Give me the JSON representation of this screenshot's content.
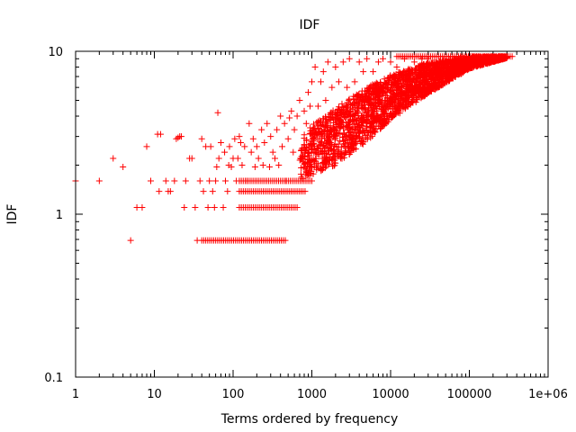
{
  "chart_data": {
    "type": "scatter",
    "title": "IDF",
    "xlabel": "Terms ordered by frequency",
    "ylabel": "IDF",
    "xscale": "log",
    "yscale": "log",
    "xlim": [
      1,
      1000000
    ],
    "ylim": [
      0.1,
      10
    ],
    "xticks": [
      {
        "value": 1,
        "label": "1"
      },
      {
        "value": 10,
        "label": "10"
      },
      {
        "value": 100,
        "label": "100"
      },
      {
        "value": 1000,
        "label": "1000"
      },
      {
        "value": 10000,
        "label": "10000"
      },
      {
        "value": 100000,
        "label": "100000"
      },
      {
        "value": 1000000,
        "label": "1e+06"
      }
    ],
    "yticks": [
      {
        "value": 0.1,
        "label": "0.1"
      },
      {
        "value": 1,
        "label": "1"
      },
      {
        "value": 10,
        "label": "10"
      }
    ],
    "marker": "+",
    "color": "#ff0000",
    "grid": false,
    "legend": "none",
    "series": [
      {
        "points": [
          [
            1,
            1.6
          ],
          [
            2,
            1.6
          ],
          [
            3,
            2.2
          ],
          [
            4,
            1.95
          ],
          [
            5,
            0.69
          ],
          [
            6,
            1.1
          ],
          [
            7,
            1.1
          ],
          [
            8,
            2.6
          ],
          [
            9,
            1.6
          ],
          [
            11,
            3.1
          ],
          [
            11.5,
            1.38
          ],
          [
            12,
            3.1
          ],
          [
            14,
            1.6
          ],
          [
            15,
            1.38
          ],
          [
            16,
            1.38
          ],
          [
            18,
            1.6
          ],
          [
            19,
            2.9
          ],
          [
            20,
            2.95
          ],
          [
            21,
            3.0
          ],
          [
            22,
            3.0
          ],
          [
            24,
            1.1
          ],
          [
            25,
            1.6
          ],
          [
            28,
            2.2
          ],
          [
            30,
            2.2
          ],
          [
            33,
            1.1
          ],
          [
            35,
            0.69
          ],
          [
            38,
            1.6
          ],
          [
            40,
            2.9
          ],
          [
            42,
            1.38
          ],
          [
            45,
            2.6
          ],
          [
            48,
            1.1
          ],
          [
            50,
            1.6
          ],
          [
            52,
            2.6
          ],
          [
            55,
            1.38
          ],
          [
            58,
            1.1
          ],
          [
            60,
            1.6
          ],
          [
            62,
            1.95
          ],
          [
            64,
            4.2
          ],
          [
            66,
            2.2
          ],
          [
            70,
            2.75
          ],
          [
            75,
            1.1
          ],
          [
            78,
            2.4
          ],
          [
            80,
            1.6
          ],
          [
            85,
            1.38
          ],
          [
            88,
            2.0
          ],
          [
            90,
            2.6
          ],
          [
            95,
            1.95
          ],
          [
            100,
            2.2
          ],
          [
            105,
            2.9
          ],
          [
            110,
            1.6
          ],
          [
            115,
            2.2
          ],
          [
            120,
            3.0
          ],
          [
            125,
            2.75
          ],
          [
            130,
            2.0
          ],
          [
            140,
            2.6
          ],
          [
            150,
            1.6
          ],
          [
            160,
            3.6
          ],
          [
            170,
            2.4
          ],
          [
            180,
            2.9
          ],
          [
            190,
            1.95
          ],
          [
            200,
            2.6
          ],
          [
            210,
            2.2
          ],
          [
            230,
            3.3
          ],
          [
            240,
            2.0
          ],
          [
            250,
            2.75
          ],
          [
            270,
            3.6
          ],
          [
            290,
            1.95
          ],
          [
            300,
            3.0
          ],
          [
            320,
            2.4
          ],
          [
            340,
            2.2
          ],
          [
            360,
            3.3
          ],
          [
            380,
            2.0
          ],
          [
            400,
            4.0
          ],
          [
            420,
            2.6
          ],
          [
            450,
            3.6
          ],
          [
            470,
            1.6
          ],
          [
            500,
            2.9
          ],
          [
            520,
            3.9
          ],
          [
            550,
            4.3
          ],
          [
            580,
            2.4
          ],
          [
            600,
            3.3
          ],
          [
            650,
            4.0
          ],
          [
            700,
            5.0
          ],
          [
            750,
            2.2
          ],
          [
            800,
            4.3
          ],
          [
            850,
            3.6
          ],
          [
            900,
            5.6
          ],
          [
            950,
            4.6
          ],
          [
            1000,
            6.5
          ],
          [
            1100,
            8.0
          ],
          [
            1200,
            4.6
          ],
          [
            1300,
            6.5
          ],
          [
            1400,
            7.5
          ],
          [
            1500,
            5.0
          ],
          [
            1600,
            8.6
          ],
          [
            1800,
            6.0
          ],
          [
            2000,
            8.0
          ],
          [
            2200,
            6.5
          ],
          [
            2500,
            8.6
          ],
          [
            2800,
            6.0
          ],
          [
            3000,
            9.0
          ],
          [
            3500,
            6.5
          ],
          [
            4000,
            8.6
          ],
          [
            4500,
            7.5
          ],
          [
            5000,
            9.0
          ],
          [
            6000,
            7.5
          ],
          [
            7000,
            8.6
          ],
          [
            8000,
            9.0
          ],
          [
            10000,
            8.6
          ],
          [
            12000,
            8.0
          ],
          [
            15000,
            9.0
          ],
          [
            20000,
            8.6
          ],
          [
            25000,
            9.0
          ],
          [
            30000,
            9.0
          ]
        ]
      }
    ],
    "bands": [
      {
        "y": 0.69,
        "x_start": 40,
        "x_end": 460
      },
      {
        "y": 1.1,
        "x_start": 120,
        "x_end": 650
      },
      {
        "y": 1.38,
        "x_start": 120,
        "x_end": 820
      },
      {
        "y": 1.6,
        "x_start": 120,
        "x_end": 1000
      },
      {
        "y": 9.3,
        "x_start": 12000,
        "x_end": 350000
      }
    ],
    "envelope": [
      {
        "x": 700,
        "lower": 1.6,
        "upper": 3.0
      },
      {
        "x": 1000,
        "lower": 1.75,
        "upper": 3.5
      },
      {
        "x": 2000,
        "lower": 2.0,
        "upper": 4.5
      },
      {
        "x": 5000,
        "lower": 2.8,
        "upper": 6.0
      },
      {
        "x": 10000,
        "lower": 3.8,
        "upper": 7.2
      },
      {
        "x": 30000,
        "lower": 5.5,
        "upper": 8.5
      },
      {
        "x": 100000,
        "lower": 7.8,
        "upper": 9.3
      },
      {
        "x": 300000,
        "lower": 9.1,
        "upper": 9.3
      }
    ]
  }
}
